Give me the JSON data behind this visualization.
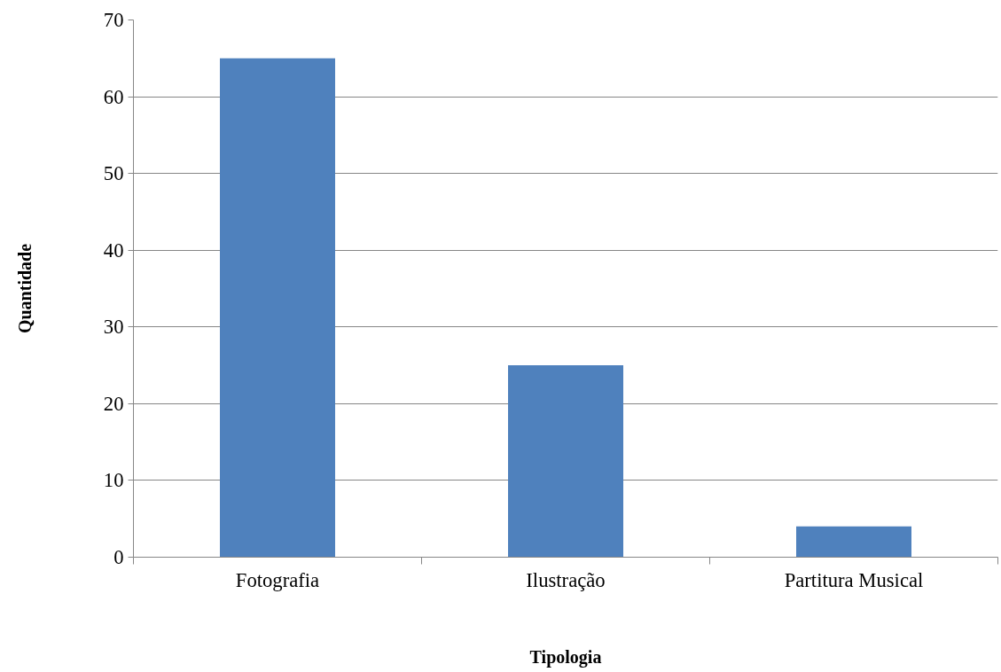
{
  "chart_data": {
    "type": "bar",
    "categories": [
      "Fotografia",
      "Ilustração",
      "Partitura Musical"
    ],
    "values": [
      65,
      25,
      4
    ],
    "color": "#4f81bd",
    "xlabel": "Tipologia",
    "ylabel": "Quantidade",
    "ylim": [
      0,
      70
    ],
    "yticks": [
      0,
      10,
      20,
      30,
      40,
      50,
      60,
      70
    ],
    "grid": "y"
  }
}
